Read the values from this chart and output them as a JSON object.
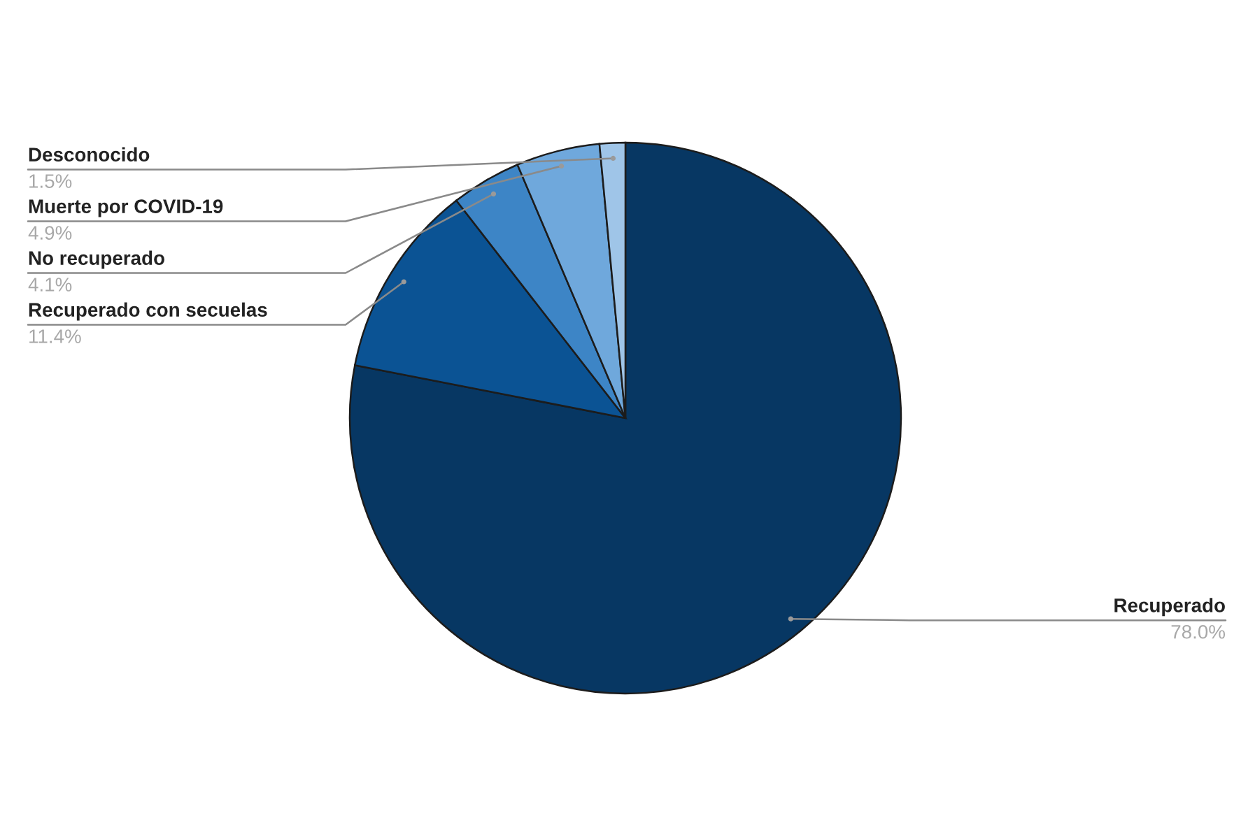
{
  "chart_data": {
    "type": "pie",
    "categories": [
      "Recuperado",
      "Recuperado con secuelas",
      "No recuperado",
      "Muerte por COVID-19",
      "Desconocido"
    ],
    "values": [
      78.0,
      11.4,
      4.1,
      4.9,
      1.5
    ],
    "colors": [
      "#073763",
      "#0b5394",
      "#3d85c6",
      "#6fa8dc",
      "#9fc5e8"
    ],
    "value_labels": [
      "78.0%",
      "11.4%",
      "4.1%",
      "4.9%",
      "1.5%"
    ]
  }
}
